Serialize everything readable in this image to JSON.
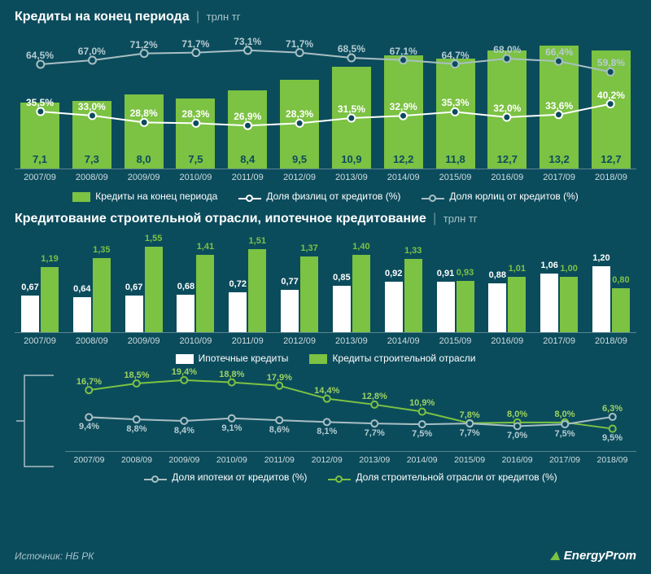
{
  "colors": {
    "bg": "#0b4c5c",
    "green": "#7cc243",
    "white": "#ffffff",
    "grey": "#a9bfc4",
    "axis": "#5a8590",
    "lightGreen": "#9dd362"
  },
  "categories": [
    "2007/09",
    "2008/09",
    "2009/09",
    "2010/09",
    "2011/09",
    "2012/09",
    "2013/09",
    "2014/09",
    "2015/09",
    "2016/09",
    "2017/09",
    "2018/09"
  ],
  "chart1": {
    "title": "Кредиты на конец периода",
    "unit": "трлн тг",
    "bars": [
      7.1,
      7.3,
      8.0,
      7.5,
      8.4,
      9.5,
      10.9,
      12.2,
      11.8,
      12.7,
      13.2,
      12.7
    ],
    "barLabels": [
      "7,1",
      "7,3",
      "8,0",
      "7,5",
      "8,4",
      "9,5",
      "10,9",
      "12,2",
      "11,8",
      "12,7",
      "13,2",
      "12,7"
    ],
    "barMax": 14,
    "whiteLine": [
      35.5,
      33.0,
      28.8,
      28.3,
      26.9,
      28.3,
      31.5,
      32.9,
      35.3,
      32.0,
      33.6,
      40.2
    ],
    "whiteLabels": [
      "35,5%",
      "33,0%",
      "28,8%",
      "28,3%",
      "26,9%",
      "28,3%",
      "31,5%",
      "32,9%",
      "35,3%",
      "32,0%",
      "33,6%",
      "40,2%"
    ],
    "greyLine": [
      64.5,
      67.0,
      71.2,
      71.7,
      73.1,
      71.7,
      68.5,
      67.1,
      64.7,
      68.0,
      66.4,
      59.8
    ],
    "greyLabels": [
      "64,5%",
      "67,0%",
      "71,2%",
      "71,7%",
      "73,1%",
      "71,7%",
      "68,5%",
      "67,1%",
      "64,7%",
      "68,0%",
      "66,4%",
      "59,8%"
    ],
    "pctMax": 80,
    "legend": {
      "bars": "Кредиты на конец периода",
      "white": "Доля физлиц от кредитов (%)",
      "grey": "Доля юрлиц от кредитов (%)"
    }
  },
  "chart2": {
    "title": "Кредитование строительной отрасли, ипотечное кредитование",
    "unit": "трлн тг",
    "whiteBars": [
      0.67,
      0.64,
      0.67,
      0.68,
      0.72,
      0.77,
      0.85,
      0.92,
      0.91,
      0.88,
      1.06,
      1.2
    ],
    "whiteLabels": [
      "0,67",
      "0,64",
      "0,67",
      "0,68",
      "0,72",
      "0,77",
      "0,85",
      "0,92",
      "0,91",
      "0,88",
      "1,06",
      "1,20"
    ],
    "greenBars": [
      1.19,
      1.35,
      1.55,
      1.41,
      1.51,
      1.37,
      1.4,
      1.33,
      0.93,
      1.01,
      1.0,
      0.8
    ],
    "greenLabels": [
      "1,19",
      "1,35",
      "1,55",
      "1,41",
      "1,51",
      "1,37",
      "1,40",
      "1,33",
      "0,93",
      "1,01",
      "1,00",
      "0,80"
    ],
    "barMax": 1.7,
    "legend": {
      "white": "Ипотечные кредиты",
      "green": "Кредиты строительной отрасли"
    }
  },
  "chart3": {
    "greyLine": [
      9.4,
      8.8,
      8.4,
      9.1,
      8.6,
      8.1,
      7.7,
      7.5,
      7.7,
      7.0,
      7.5,
      9.5
    ],
    "greyLabels": [
      "9,4%",
      "8,8%",
      "8,4%",
      "9,1%",
      "8,6%",
      "8,1%",
      "7,7%",
      "7,5%",
      "7,7%",
      "7,0%",
      "7,5%",
      "9,5%"
    ],
    "greenLine": [
      16.7,
      18.5,
      19.4,
      18.8,
      17.9,
      14.4,
      12.8,
      10.9,
      7.8,
      8.0,
      8.0,
      6.3
    ],
    "greenLabels": [
      "16,7%",
      "18,5%",
      "19,4%",
      "18,8%",
      "17,9%",
      "14,4%",
      "12,8%",
      "10,9%",
      "7,8%",
      "8,0%",
      "8,0%",
      "6,3%"
    ],
    "pctMax": 22,
    "legend": {
      "grey": "Доля ипотеки от кредитов (%)",
      "green": "Доля строительной отрасли от кредитов (%)"
    }
  },
  "footer": {
    "source": "Источник: НБ РК",
    "logo": "EnergyProm"
  }
}
